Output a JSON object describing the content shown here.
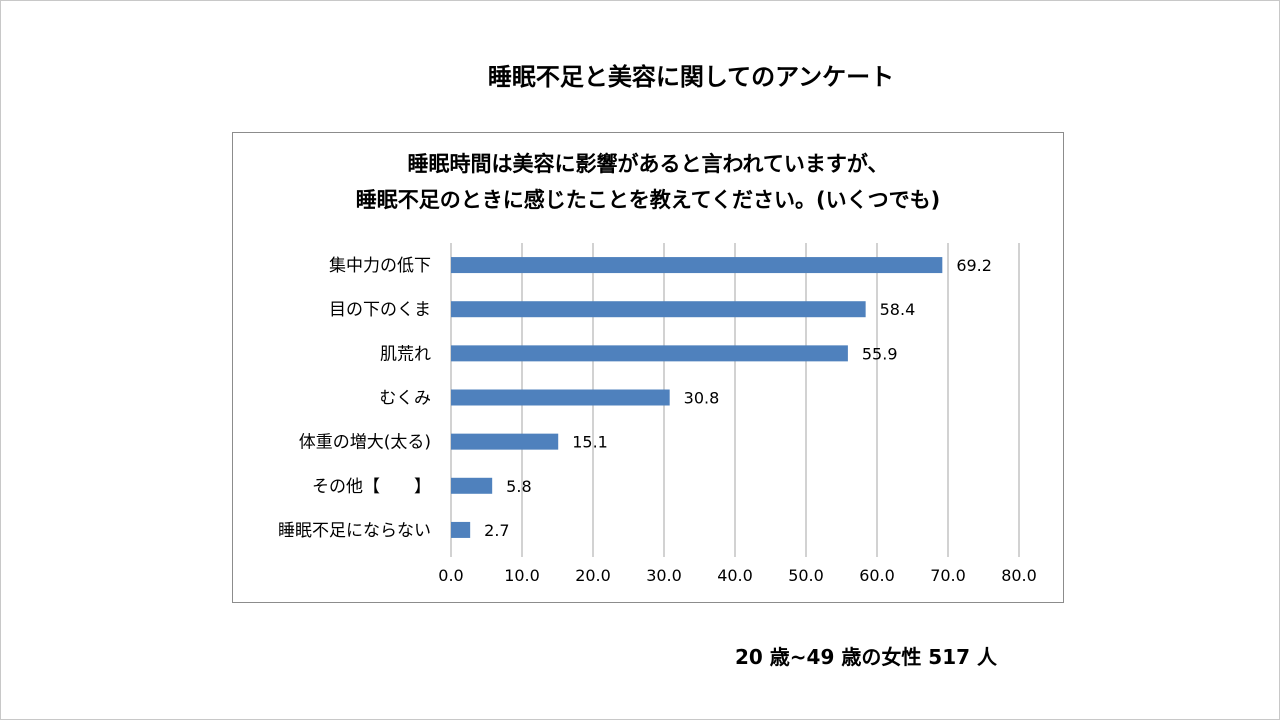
{
  "slide": {
    "title": "睡眠不足と美容に関してのアンケート",
    "footnote": "20 歳~49 歳の女性 517 人"
  },
  "colors": {
    "bar": "#4f81bd",
    "grid": "#a6a6a6",
    "text": "#000000"
  },
  "chart_data": {
    "type": "bar",
    "orientation": "horizontal",
    "title_lines": [
      "睡眠時間は美容に影響があると言われていますが、",
      "睡眠不足のときに感じたことを教えてください。(いくつでも)"
    ],
    "categories": [
      "集中力の低下",
      "目の下のくま",
      "肌荒れ",
      "むくみ",
      "体重の増大(太る)",
      "その他【　　】",
      "睡眠不足にならない"
    ],
    "values": [
      69.2,
      58.4,
      55.9,
      30.8,
      15.1,
      5.8,
      2.7
    ],
    "value_labels": [
      "69.2",
      "58.4",
      "55.9",
      "30.8",
      "15.1",
      "5.8",
      "2.7"
    ],
    "xlim": [
      0,
      80
    ],
    "xticks": [
      "0.0",
      "10.0",
      "20.0",
      "30.0",
      "40.0",
      "50.0",
      "60.0",
      "70.0",
      "80.0"
    ],
    "grid": true,
    "legend": "none",
    "xlabel": "",
    "ylabel": ""
  }
}
